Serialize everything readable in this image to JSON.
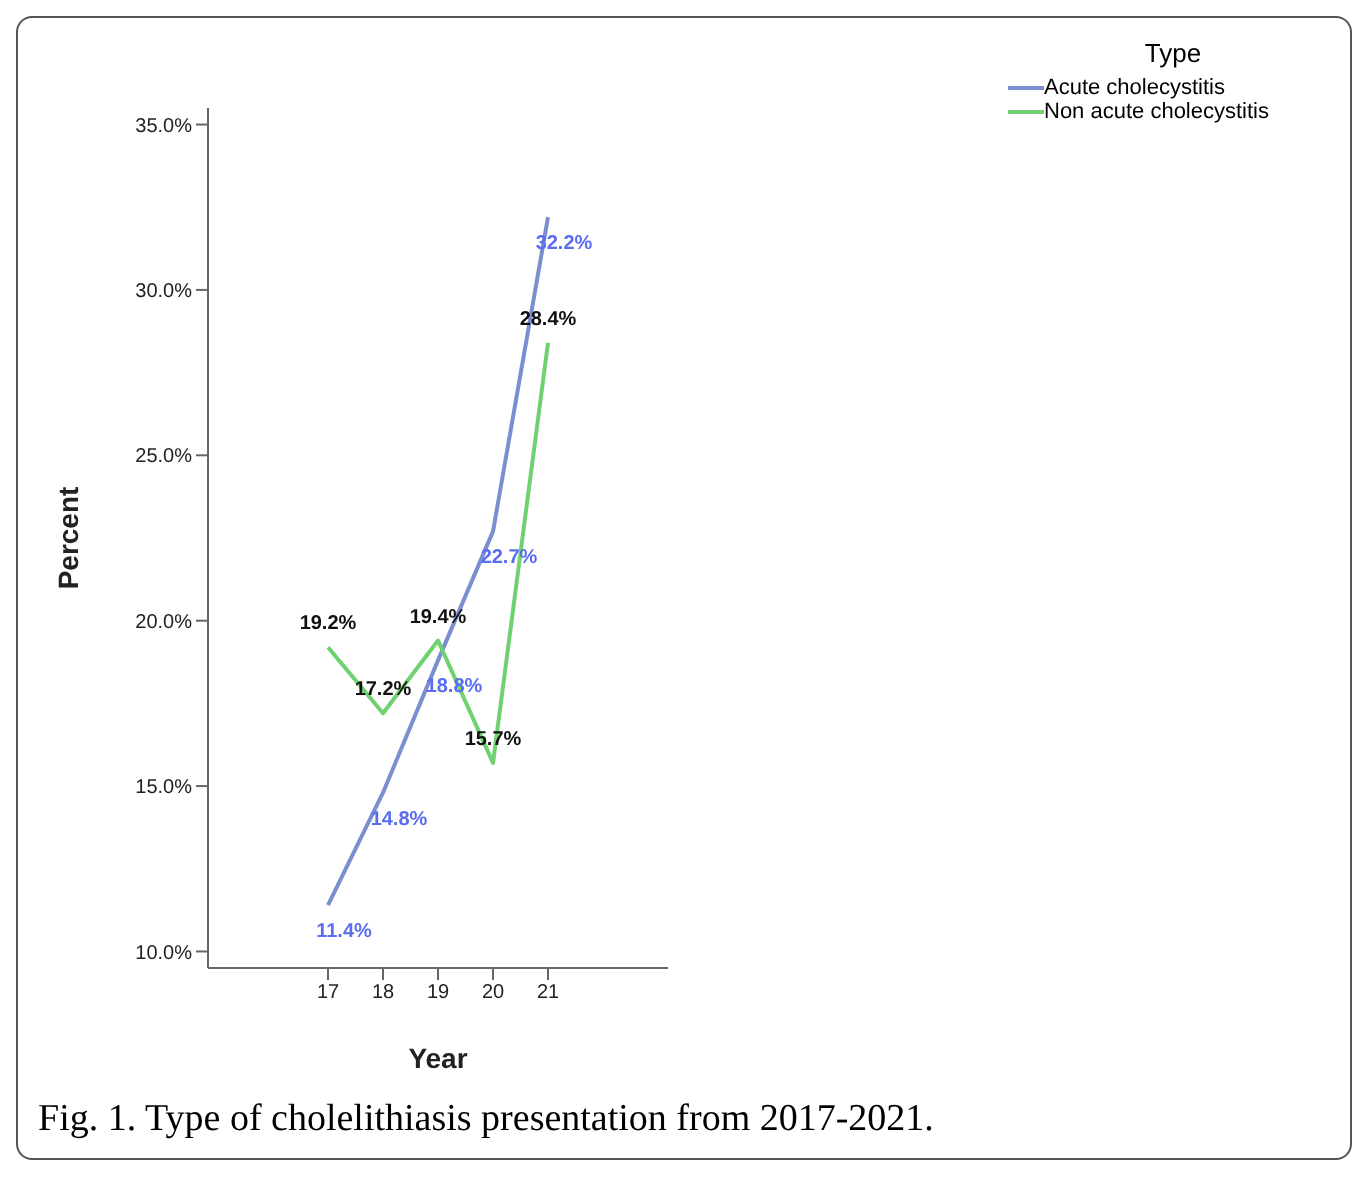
{
  "chart_data": {
    "type": "line",
    "xlabel": "Year",
    "ylabel": "Percent",
    "legend_title": "Type",
    "legend": "top right",
    "categories": [
      "17",
      "18",
      "19",
      "20",
      "21"
    ],
    "ylim": [
      9.5,
      35.5
    ],
    "yticks": [
      {
        "value": 10,
        "label": "10.0%"
      },
      {
        "value": 15,
        "label": "15.0%"
      },
      {
        "value": 20,
        "label": "20.0%"
      },
      {
        "value": 25,
        "label": "25.0%"
      },
      {
        "value": 30,
        "label": "30.0%"
      },
      {
        "value": 35,
        "label": "35.0%"
      }
    ],
    "grid": false,
    "marker": "none",
    "line_style": "solid",
    "series": [
      {
        "name": "Acute cholecystitis",
        "color": "#7b8fd0",
        "values": [
          11.4,
          14.8,
          18.8,
          22.7,
          32.2
        ],
        "value_labels": [
          "11.4%",
          "14.8%",
          "18.8%",
          "22.7%",
          "32.2%"
        ]
      },
      {
        "name": "Non acute cholecystitis",
        "color": "#6fd16f",
        "values": [
          19.2,
          17.2,
          19.4,
          15.7,
          28.4
        ],
        "value_labels": [
          "19.2%",
          "17.2%",
          "19.4%",
          "15.7%",
          "28.4%"
        ]
      }
    ],
    "annotations": [
      "Fig. 1. Type of cholelithiasis presentation from 2017-2021."
    ]
  }
}
